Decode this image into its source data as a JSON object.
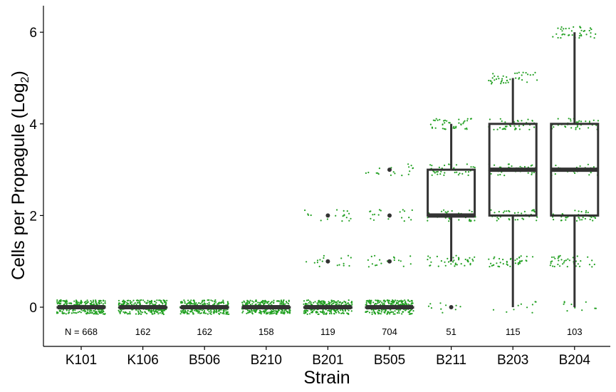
{
  "chart_data": {
    "type": "boxplot",
    "xlabel": "Strain",
    "ylabel_main": "Cells per Propagule (Log",
    "ylabel_sub": "2",
    "ylabel_close": ")",
    "ylim": [
      -0.8,
      6.3
    ],
    "yticks": [
      0,
      2,
      4,
      6
    ],
    "categories": [
      "K101",
      "K106",
      "B506",
      "B210",
      "B201",
      "B505",
      "B211",
      "B203",
      "B204"
    ],
    "n_labels": [
      "N = 668",
      "162",
      "162",
      "158",
      "119",
      "704",
      "51",
      "115",
      "103"
    ],
    "boxes": [
      {
        "strain": "K101",
        "q1": 0,
        "median": 0,
        "q3": 0,
        "whisker_low": 0,
        "whisker_high": 0,
        "outliers": []
      },
      {
        "strain": "K106",
        "q1": 0,
        "median": 0,
        "q3": 0,
        "whisker_low": 0,
        "whisker_high": 0,
        "outliers": []
      },
      {
        "strain": "B506",
        "q1": 0,
        "median": 0,
        "q3": 0,
        "whisker_low": 0,
        "whisker_high": 0,
        "outliers": []
      },
      {
        "strain": "B210",
        "q1": 0,
        "median": 0,
        "q3": 0,
        "whisker_low": 0,
        "whisker_high": 0,
        "outliers": []
      },
      {
        "strain": "B201",
        "q1": 0,
        "median": 0,
        "q3": 0,
        "whisker_low": 0,
        "whisker_high": 0,
        "outliers": [
          1,
          2
        ]
      },
      {
        "strain": "B505",
        "q1": 0,
        "median": 0,
        "q3": 0,
        "whisker_low": 0,
        "whisker_high": 0,
        "outliers": [
          1,
          2,
          3
        ]
      },
      {
        "strain": "B211",
        "q1": 2,
        "median": 2,
        "q3": 3,
        "whisker_low": 1,
        "whisker_high": 4,
        "outliers": [
          0
        ]
      },
      {
        "strain": "B203",
        "q1": 2,
        "median": 3,
        "q3": 4,
        "whisker_low": 0,
        "whisker_high": 5,
        "outliers": []
      },
      {
        "strain": "B204",
        "q1": 2,
        "median": 3,
        "q3": 4,
        "whisker_low": 0,
        "whisker_high": 6,
        "outliers": []
      }
    ],
    "jitter_points": [
      {
        "strain": "B201",
        "values": [
          0,
          1,
          2
        ]
      },
      {
        "strain": "B505",
        "values": [
          0,
          1,
          2,
          3
        ]
      },
      {
        "strain": "B211",
        "values": [
          0,
          1,
          2,
          3,
          4
        ]
      },
      {
        "strain": "B203",
        "values": [
          0,
          1,
          2,
          3,
          4,
          5
        ]
      },
      {
        "strain": "B204",
        "values": [
          0,
          1,
          2,
          3,
          4,
          6
        ]
      }
    ],
    "colors": {
      "box": "#333333",
      "points": "#22a022",
      "outlier": "#333333",
      "axis": "#000000"
    }
  }
}
